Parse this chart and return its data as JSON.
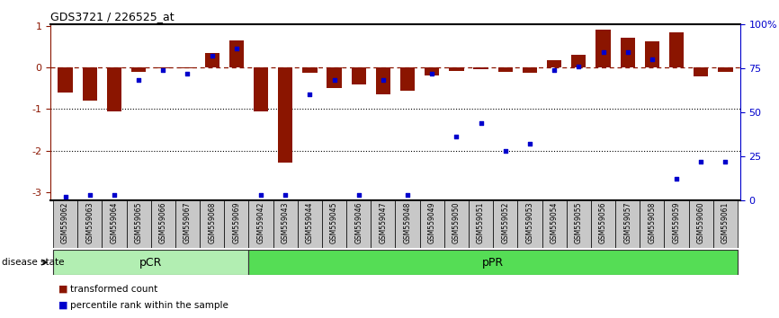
{
  "title": "GDS3721 / 226525_at",
  "samples": [
    "GSM559062",
    "GSM559063",
    "GSM559064",
    "GSM559065",
    "GSM559066",
    "GSM559067",
    "GSM559068",
    "GSM559069",
    "GSM559042",
    "GSM559043",
    "GSM559044",
    "GSM559045",
    "GSM559046",
    "GSM559047",
    "GSM559048",
    "GSM559049",
    "GSM559050",
    "GSM559051",
    "GSM559052",
    "GSM559053",
    "GSM559054",
    "GSM559055",
    "GSM559056",
    "GSM559057",
    "GSM559058",
    "GSM559059",
    "GSM559060",
    "GSM559061"
  ],
  "red_bars": [
    -0.6,
    -0.8,
    -1.05,
    -0.1,
    -0.03,
    -0.02,
    0.35,
    0.65,
    -1.05,
    -2.3,
    -0.12,
    -0.5,
    -0.4,
    -0.65,
    -0.55,
    -0.2,
    -0.08,
    -0.05,
    -0.1,
    -0.12,
    0.18,
    0.3,
    0.9,
    0.72,
    0.62,
    0.85,
    -0.22,
    -0.1
  ],
  "blue_dots_pct": [
    2,
    3,
    3,
    68,
    74,
    72,
    82,
    86,
    3,
    3,
    60,
    68,
    3,
    68,
    3,
    72,
    36,
    44,
    28,
    32,
    74,
    76,
    84,
    84,
    80,
    12,
    22,
    22
  ],
  "pCR_count": 8,
  "pCR_color": "#b2eeb2",
  "pPR_color": "#55dd55",
  "bar_color": "#8B1500",
  "dot_color": "#0000CC",
  "legend_red": "transformed count",
  "legend_blue": "percentile rank within the sample",
  "disease_state_label": "disease state",
  "pCR_label": "pCR",
  "pPR_label": "pPR",
  "ylim_left": [
    -3.2,
    1.05
  ],
  "ylim_right": [
    0,
    100
  ],
  "yticks_left": [
    -3,
    -2,
    -1,
    0,
    1
  ],
  "ytick_left_labels": [
    "-3",
    "-2",
    "-1",
    "0",
    "1"
  ],
  "yticks_right": [
    0,
    25,
    50,
    75,
    100
  ],
  "ytick_right_labels": [
    "0",
    "25",
    "50",
    "75",
    "100%"
  ]
}
